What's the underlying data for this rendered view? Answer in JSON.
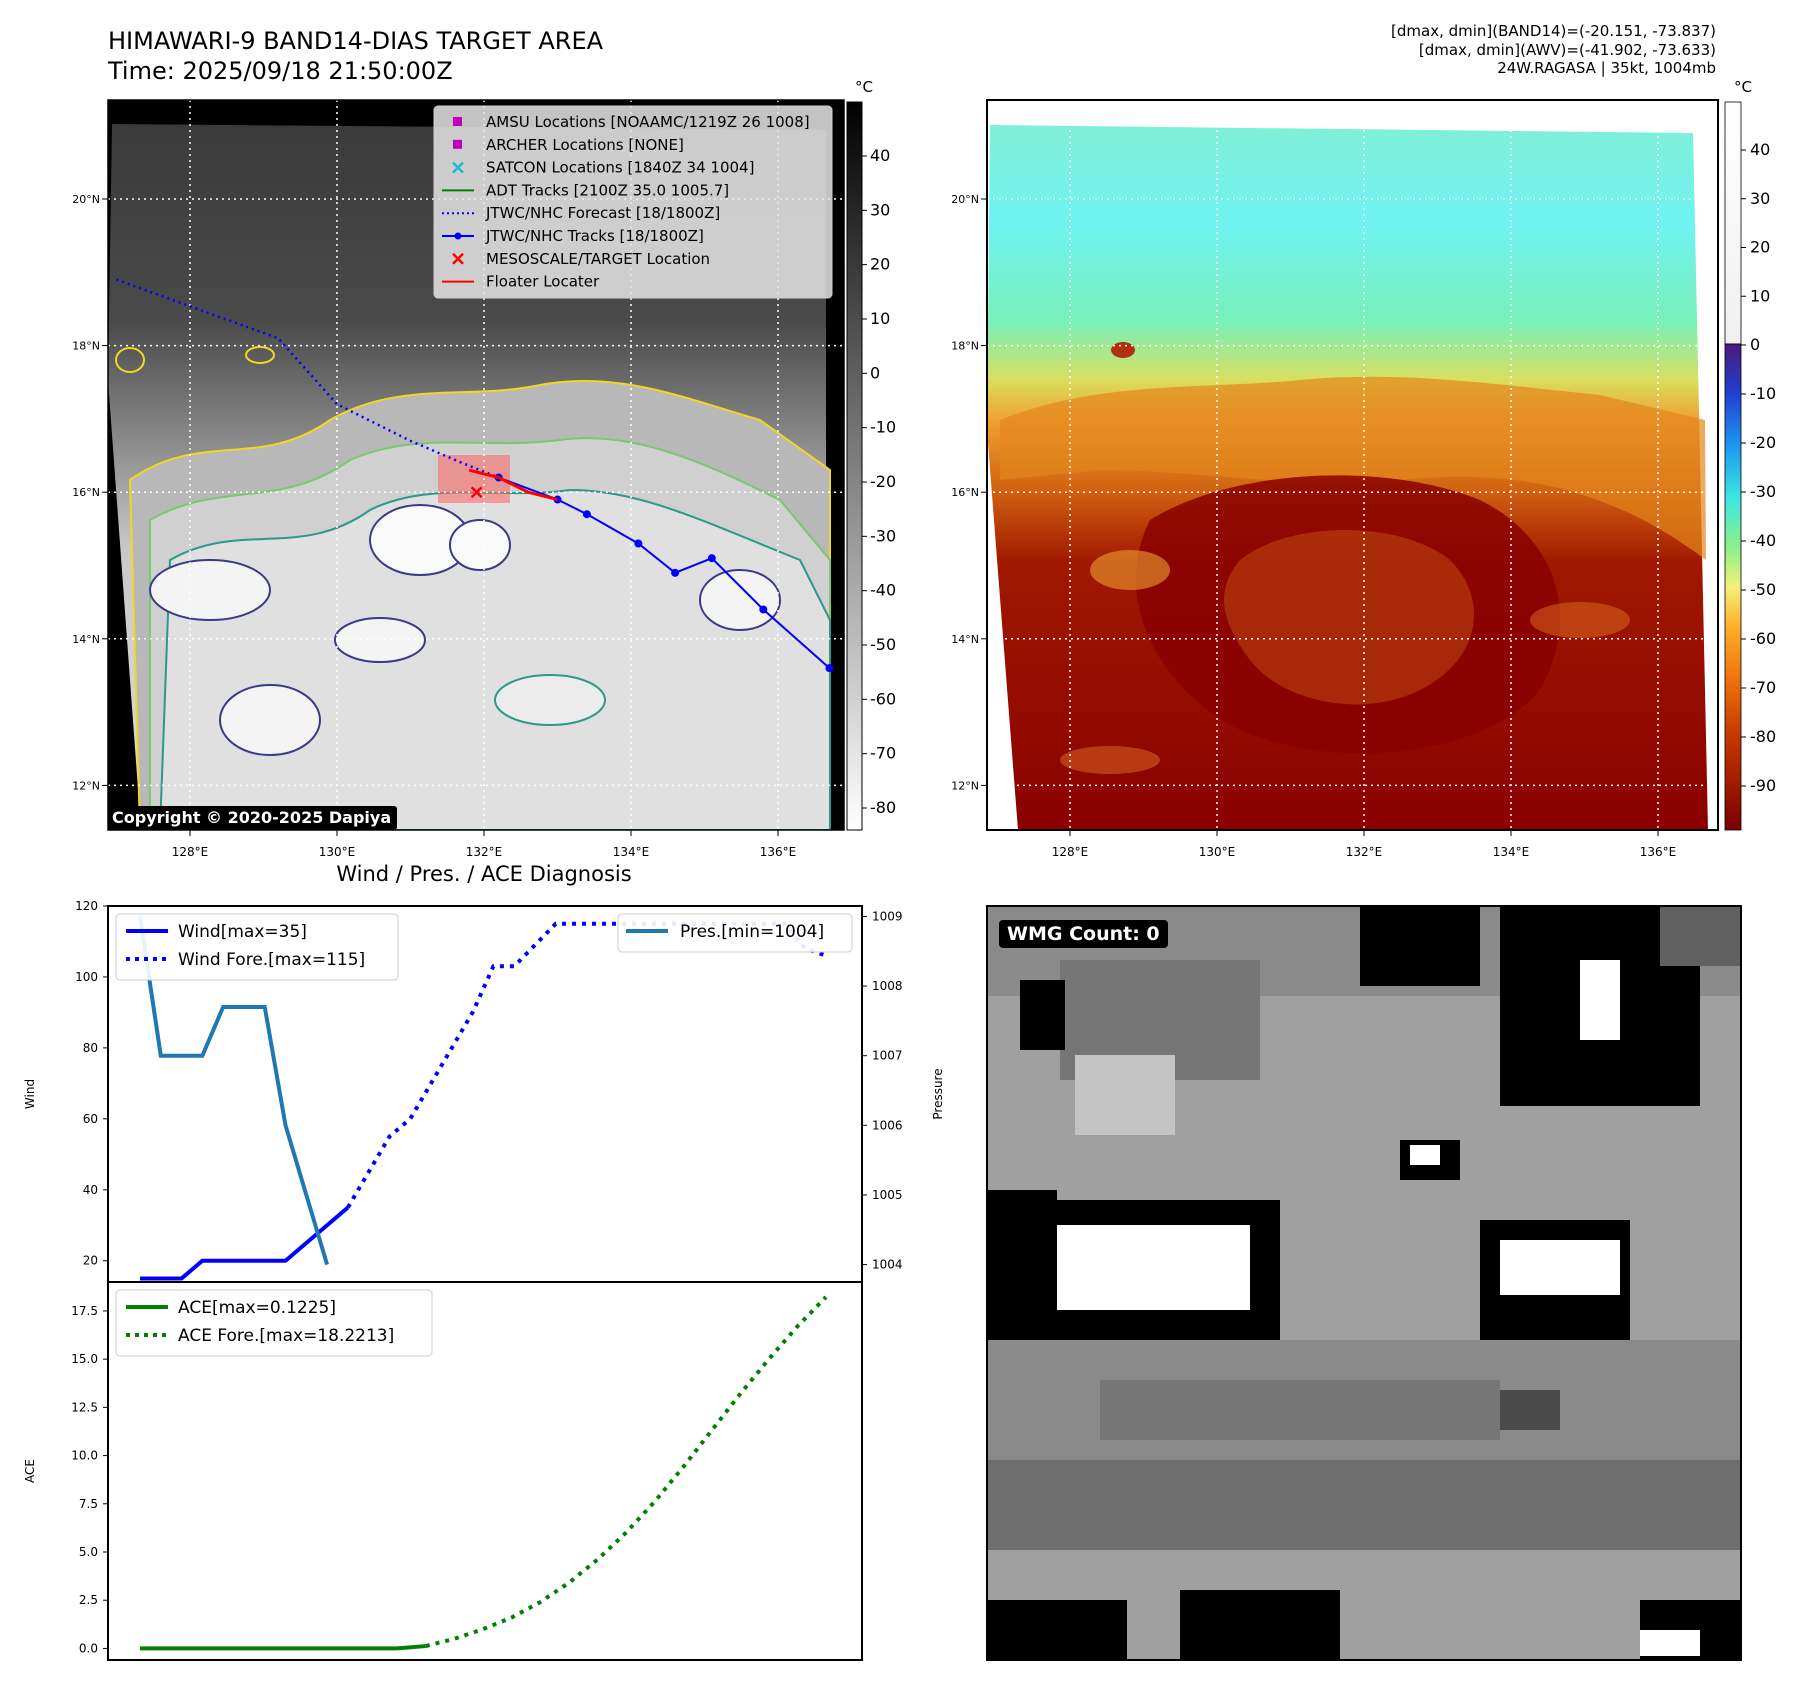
{
  "header": {
    "title_line1": "HIMAWARI-9 BAND14-DIAS TARGET AREA",
    "title_line2": "Time: 2025/09/18 21:50:00Z",
    "right_line1": "[dmax, dmin](BAND14)=(-20.151, -73.837)",
    "right_line2": "[dmax, dmin](AWV)=(-41.902, -73.633)",
    "right_line3": "24W.RAGASA | 35kt, 1004mb"
  },
  "map": {
    "lat_labels": [
      "20°N",
      "18°N",
      "16°N",
      "14°N",
      "12°N"
    ],
    "lon_labels": [
      "128°E",
      "130°E",
      "132°E",
      "134°E",
      "136°E"
    ],
    "copyright": "Copyright © 2020-2025 Dapiya",
    "legend": [
      {
        "label": "AMSU Locations [NOAAMC/1219Z 26 1008]",
        "marker": "square",
        "color": "#c000c0"
      },
      {
        "label": "ARCHER Locations [NONE]",
        "marker": "square",
        "color": "#c000c0"
      },
      {
        "label": "SATCON Locations [1840Z 34 1004]",
        "marker": "x",
        "color": "#17becf"
      },
      {
        "label": "ADT Tracks [2100Z 35.0 1005.7]",
        "marker": "line",
        "color": "#008000"
      },
      {
        "label": "JTWC/NHC Forecast [18/1800Z]",
        "marker": "dotted",
        "color": "#0000ff"
      },
      {
        "label": "JTWC/NHC Tracks [18/1800Z]",
        "marker": "line-dot",
        "color": "#0000ff"
      },
      {
        "label": "MESOSCALE/TARGET Location",
        "marker": "x",
        "color": "#ff0000"
      },
      {
        "label": "Floater Locater",
        "marker": "line",
        "color": "#ff0000"
      }
    ],
    "gray_colorbar": {
      "unit": "°C",
      "ticks": [
        40,
        30,
        20,
        10,
        0,
        -10,
        -20,
        -30,
        -40,
        -50,
        -60,
        -70,
        -80
      ]
    },
    "awv_colorbar": {
      "unit": "°C",
      "ticks": [
        40,
        30,
        20,
        10,
        0,
        -10,
        -20,
        -30,
        -40,
        -50,
        -60,
        -70,
        -80,
        -90
      ]
    },
    "track": {
      "color": "#0000ff",
      "points": [
        [
          136.7,
          13.6
        ],
        [
          135.8,
          14.4
        ],
        [
          135.1,
          15.1
        ],
        [
          134.6,
          14.9
        ],
        [
          134.1,
          15.3
        ],
        [
          133.4,
          15.7
        ],
        [
          133.0,
          15.9
        ],
        [
          132.2,
          16.2
        ]
      ],
      "forecast_dotted": [
        [
          127.0,
          18.9
        ],
        [
          129.2,
          18.1
        ],
        [
          130.0,
          17.2
        ],
        [
          131.0,
          16.7
        ],
        [
          131.7,
          16.4
        ],
        [
          132.2,
          16.2
        ]
      ],
      "floater": [
        [
          131.8,
          16.3
        ],
        [
          132.2,
          16.2
        ],
        [
          132.6,
          16.0
        ],
        [
          133.0,
          15.9
        ]
      ],
      "target": [
        131.9,
        16.0
      ]
    },
    "tick_lat": [
      20,
      18,
      16,
      14,
      12
    ],
    "tick_lon": [
      128,
      130,
      132,
      134,
      136
    ]
  },
  "chart_data": [
    {
      "type": "line",
      "title": "Wind / Pres. / ACE Diagnosis",
      "ylabel": "Wind",
      "ylim": [
        14,
        120
      ],
      "yticks": [
        20,
        40,
        60,
        80,
        100,
        120
      ],
      "y2label": "Pressure",
      "y2lim": [
        1003.75,
        1009.15
      ],
      "y2ticks": [
        1004,
        1005,
        1006,
        1007,
        1008,
        1009
      ],
      "series": [
        {
          "name": "Wind[max=35]",
          "style": "solid",
          "color": "#0000ff",
          "axis": "left",
          "values": [
            15,
            15,
            15,
            20,
            20,
            20,
            20,
            20,
            25,
            30,
            35
          ]
        },
        {
          "name": "Wind Fore.[max=115]",
          "style": "dotted",
          "color": "#0000ff",
          "axis": "left",
          "values": [
            35,
            45,
            55,
            60,
            70,
            80,
            90,
            103,
            103,
            109,
            115,
            115,
            115,
            115,
            115,
            115,
            115,
            115,
            115,
            115,
            115,
            115,
            108,
            106
          ]
        },
        {
          "name": "Pres.[min=1004]",
          "style": "solid",
          "color": "#1f77b4",
          "axis": "right",
          "values": [
            1009,
            1007,
            1007,
            1007,
            1007.7,
            1007.7,
            1007.7,
            1006,
            1005,
            1004
          ]
        }
      ]
    },
    {
      "type": "line",
      "ylabel": "ACE",
      "ylim": [
        -0.6,
        19
      ],
      "yticks": [
        0.0,
        2.5,
        5.0,
        7.5,
        10.0,
        12.5,
        15.0,
        17.5
      ],
      "tick_labels": [
        "0.0",
        "2.5",
        "5.0",
        "7.5",
        "10.0",
        "12.5",
        "15.0",
        "17.5"
      ],
      "series": [
        {
          "name": "ACE[max=0.1225]",
          "style": "solid",
          "color": "#008000",
          "values": [
            0,
            0,
            0,
            0,
            0,
            0,
            0,
            0,
            0,
            0,
            0.1225
          ]
        },
        {
          "name": "ACE Fore.[max=18.2213]",
          "style": "dotted",
          "color": "#008000",
          "values": [
            0.1225,
            0.5,
            1.0,
            1.6,
            2.4,
            3.4,
            4.6,
            6.0,
            7.6,
            9.4,
            11.3,
            13.2,
            15.0,
            16.7,
            18.2213
          ]
        }
      ]
    }
  ],
  "wmg": {
    "label": "WMG Count: 0"
  }
}
